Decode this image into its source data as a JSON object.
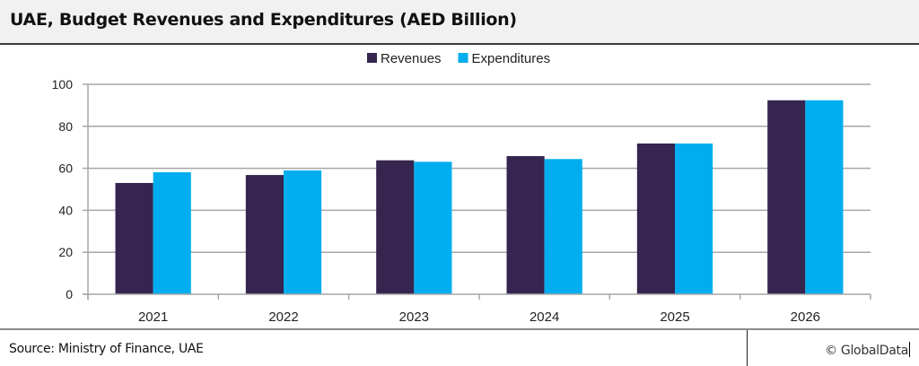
{
  "header": {
    "title": "UAE, Budget Revenues and Expenditures (AED Billion)"
  },
  "footer": {
    "source": "Source: Ministry of Finance, UAE",
    "copyright": "© GlobalData"
  },
  "chart_data": {
    "type": "bar",
    "title": "UAE, Budget Revenues and Expenditures (AED Billion)",
    "xlabel": "",
    "ylabel": "",
    "categories": [
      "2021",
      "2022",
      "2023",
      "2024",
      "2025",
      "2026"
    ],
    "series": [
      {
        "name": "Revenues",
        "color": "#35254f",
        "values": [
          53.0,
          56.8,
          63.8,
          65.8,
          71.8,
          92.4
        ]
      },
      {
        "name": "Expenditures",
        "color": "#00aeef",
        "values": [
          58.1,
          59.0,
          63.1,
          64.4,
          71.8,
          92.4
        ]
      }
    ],
    "ylim": [
      0,
      100
    ],
    "yticks": [
      0,
      20,
      40,
      60,
      80,
      100
    ],
    "grid": true,
    "legend": "top-center"
  }
}
